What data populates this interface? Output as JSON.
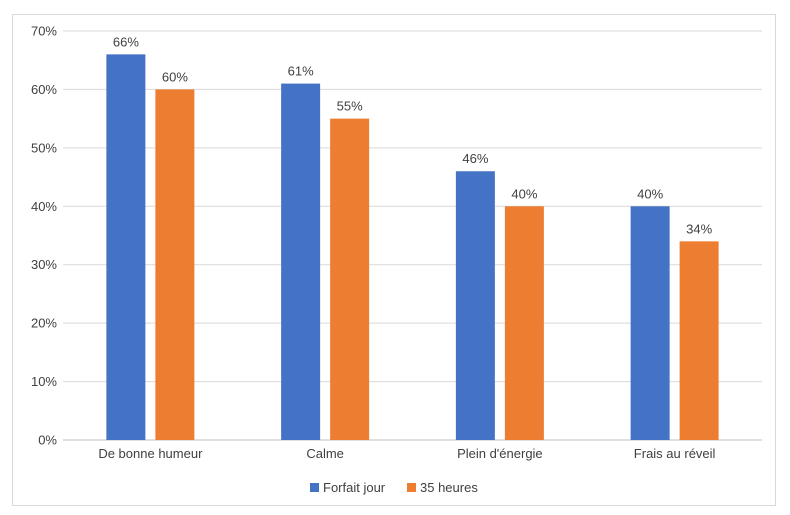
{
  "chart_data": {
    "type": "bar",
    "categories": [
      "De bonne humeur",
      "Calme",
      "Plein d'énergie",
      "Frais au réveil"
    ],
    "series": [
      {
        "name": "Forfait jour",
        "values": [
          66,
          61,
          46,
          40
        ],
        "labels": [
          "66%",
          "61%",
          "46%",
          "40%"
        ],
        "color": "#4472C4"
      },
      {
        "name": "35 heures",
        "values": [
          60,
          55,
          40,
          34
        ],
        "labels": [
          "60%",
          "55%",
          "40%",
          "34%"
        ],
        "color": "#ED7D31"
      }
    ],
    "ylim": [
      0,
      70
    ],
    "yticks": [
      0,
      10,
      20,
      30,
      40,
      50,
      60,
      70
    ],
    "ytick_labels": [
      "0%",
      "10%",
      "20%",
      "30%",
      "40%",
      "50%",
      "60%",
      "70%"
    ],
    "grid": true,
    "legend_position": "bottom"
  }
}
